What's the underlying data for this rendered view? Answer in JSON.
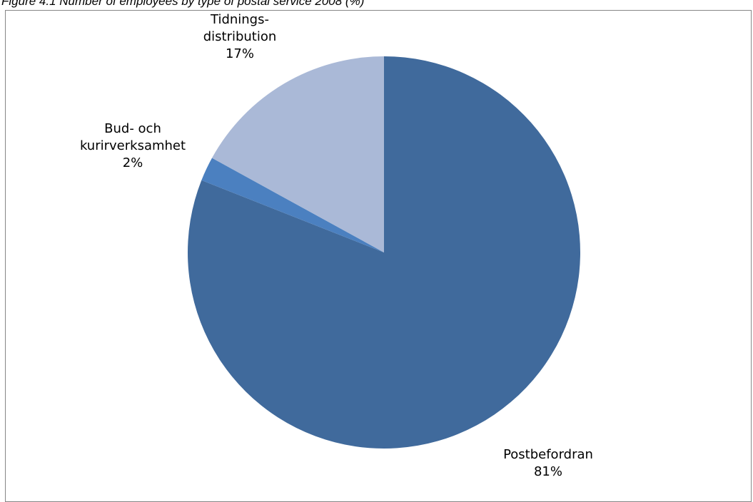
{
  "caption": "Figure 4.1 Number of employees by type of postal service 2008 (%)",
  "chart_data": {
    "type": "pie",
    "title": "Figure 4.1 Number of employees by type of postal service 2008 (%)",
    "start_angle_deg": 0,
    "direction": "clockwise",
    "slices": [
      {
        "name": "Postbefordran",
        "value": 81,
        "label": "81%",
        "color": "#406A9C"
      },
      {
        "name": "Bud- och kurirverksamhet",
        "value": 2,
        "label": "2%",
        "color": "#4B80C0"
      },
      {
        "name": "Tidnings-distribution",
        "value": 17,
        "label": "17%",
        "color": "#AAB9D7"
      }
    ],
    "legend": "none",
    "data_labels": "outside, category name and percentage"
  },
  "labels": {
    "postbefordran": {
      "line1": "Postbefordran",
      "pct": "81%"
    },
    "bud": {
      "line1": "Bud- och",
      "line2": "kurirverksamhet",
      "pct": "2%"
    },
    "tidning": {
      "line1": "Tidnings-",
      "line2": "distribution",
      "pct": "17%"
    }
  }
}
